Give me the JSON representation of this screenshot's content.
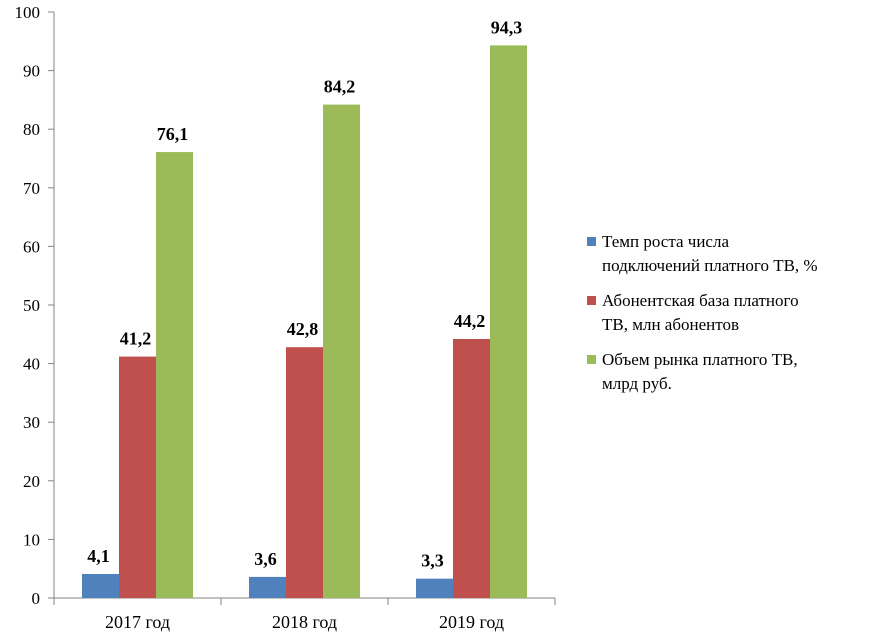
{
  "chart_data": {
    "type": "bar",
    "categories": [
      "2017 год",
      "2018 год",
      "2019 год"
    ],
    "series": [
      {
        "name": "Темп роста числа подключений платного ТВ, %",
        "legend_lines": [
          "Темп роста числа",
          "подключений платного ТВ, %"
        ],
        "color": "#4F81BD",
        "values": [
          4.1,
          3.6,
          3.3
        ],
        "labels": [
          "4,1",
          "3,6",
          "3,3"
        ]
      },
      {
        "name": "Абонентская база платного ТВ, млн абонентов",
        "legend_lines": [
          "Абонентская база платного",
          "ТВ, млн  абонентов"
        ],
        "color": "#C0504D",
        "values": [
          41.2,
          42.8,
          44.2
        ],
        "labels": [
          "41,2",
          "42,8",
          "44,2"
        ]
      },
      {
        "name": "Объем рынка платного ТВ, млрд руб.",
        "legend_lines": [
          "Объем рынка платного ТВ,",
          "млрд  руб."
        ],
        "color": "#9BBB59",
        "values": [
          76.1,
          84.2,
          94.3
        ],
        "labels": [
          "76,1",
          "84,2",
          "94,3"
        ]
      }
    ],
    "y_ticks": [
      "0",
      "10",
      "20",
      "30",
      "40",
      "50",
      "60",
      "70",
      "80",
      "90",
      "100"
    ],
    "ylim": [
      0,
      100
    ],
    "title": "",
    "xlabel": "",
    "ylabel": "",
    "grid": false,
    "legend_position": "right"
  }
}
